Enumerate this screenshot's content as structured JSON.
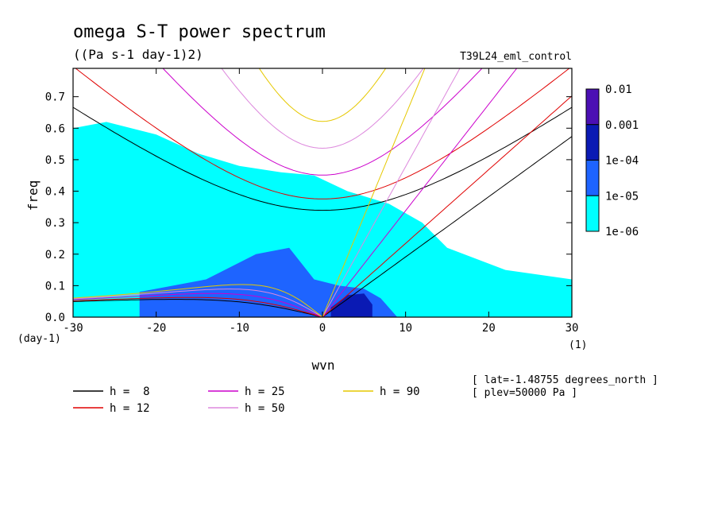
{
  "chart_data": {
    "type": "heatmap",
    "title": "omega S-T power spectrum",
    "subtitle": "((Pa s-1 day-1)2)",
    "run_label": "T39L24_eml_control",
    "xlabel": "wvn",
    "ylabel": "freq",
    "x_unit": "(1)",
    "y_unit": "(day-1)",
    "xlim": [
      -30,
      30
    ],
    "ylim": [
      0,
      0.79
    ],
    "xticks": [
      -30,
      -20,
      -10,
      0,
      10,
      20,
      30
    ],
    "yticks": [
      0.0,
      0.1,
      0.2,
      0.3,
      0.4,
      0.5,
      0.6,
      0.7
    ],
    "ytick_labels": [
      "0.0",
      "0.1",
      "0.2",
      "0.3",
      "0.4",
      "0.5",
      "0.6",
      "0.7"
    ],
    "colorbar": {
      "levels": [
        "0.01",
        "0.001",
        "1e-04",
        "1e-05",
        "1e-06"
      ],
      "colors": [
        "#4b0fb4",
        "#0a1ab4",
        "#1e64ff",
        "#00ffff"
      ]
    },
    "power_regions": [
      {
        "level": "1e-06",
        "color": "#00ffff",
        "polygon": [
          [
            -30,
            0
          ],
          [
            -30,
            0.6
          ],
          [
            -26,
            0.62
          ],
          [
            -20,
            0.58
          ],
          [
            -15,
            0.52
          ],
          [
            -10,
            0.48
          ],
          [
            -5,
            0.46
          ],
          [
            -1,
            0.45
          ],
          [
            3,
            0.4
          ],
          [
            8,
            0.36
          ],
          [
            12,
            0.3
          ],
          [
            15,
            0.22
          ],
          [
            22,
            0.15
          ],
          [
            30,
            0.12
          ],
          [
            30,
            0
          ],
          [
            -30,
            0
          ]
        ]
      },
      {
        "level": "1e-05",
        "color": "#1e64ff",
        "polygon": [
          [
            -22,
            0
          ],
          [
            -22,
            0.08
          ],
          [
            -14,
            0.12
          ],
          [
            -8,
            0.2
          ],
          [
            -4,
            0.22
          ],
          [
            -1,
            0.12
          ],
          [
            2,
            0.1
          ],
          [
            5,
            0.09
          ],
          [
            7,
            0.06
          ],
          [
            9,
            0
          ],
          [
            -22,
            0
          ]
        ]
      },
      {
        "level": "1e-04",
        "color": "#0a1ab4",
        "polygon": [
          [
            1,
            0
          ],
          [
            1,
            0.03
          ],
          [
            3,
            0.07
          ],
          [
            5,
            0.075
          ],
          [
            6,
            0.04
          ],
          [
            6,
            0
          ]
        ]
      }
    ],
    "dispersion_curves": [
      {
        "name": "h =  8",
        "color": "#000000",
        "h": 8
      },
      {
        "name": "h = 12",
        "color": "#e00000",
        "h": 12
      },
      {
        "name": "h = 25",
        "color": "#cc00cc",
        "h": 25
      },
      {
        "name": "h = 50",
        "color": "#dd88dd",
        "h": 50
      },
      {
        "name": "h = 90",
        "color": "#e6c800",
        "h": 90
      }
    ],
    "info": [
      "[ lat=-1.48755 degrees_north ]",
      "[ plev=50000 Pa ]"
    ]
  }
}
